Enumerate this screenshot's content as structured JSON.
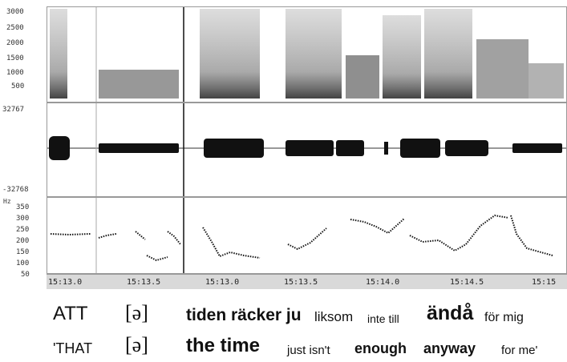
{
  "spectrogram": {
    "y_ticks": [
      "3000",
      "2500",
      "2000",
      "1500",
      "1000",
      "500"
    ]
  },
  "waveform": {
    "max_label": "32767",
    "min_label": "-32768"
  },
  "pitch": {
    "unit": "Hz",
    "y_ticks": [
      "350",
      "300",
      "250",
      "200",
      "150",
      "100",
      "50"
    ]
  },
  "time_axis": {
    "ticks": [
      "15:13.0",
      "15:13.5",
      "15:13.0",
      "15:13.5",
      "15:14.0",
      "15:14.5",
      "15:15"
    ]
  },
  "transcript": {
    "swedish": {
      "w1": "ATT",
      "w2": "[ə]",
      "w3": "tiden räcker ju",
      "w4": "liksom",
      "w5": "inte till",
      "w6": "ändå",
      "w7": "för mig"
    },
    "english": {
      "w1": "'THAT",
      "w2": "[ə]",
      "w3": "the time",
      "w4": "just isn't",
      "w5": "enough",
      "w6": "anyway",
      "w7": "for me'"
    }
  }
}
